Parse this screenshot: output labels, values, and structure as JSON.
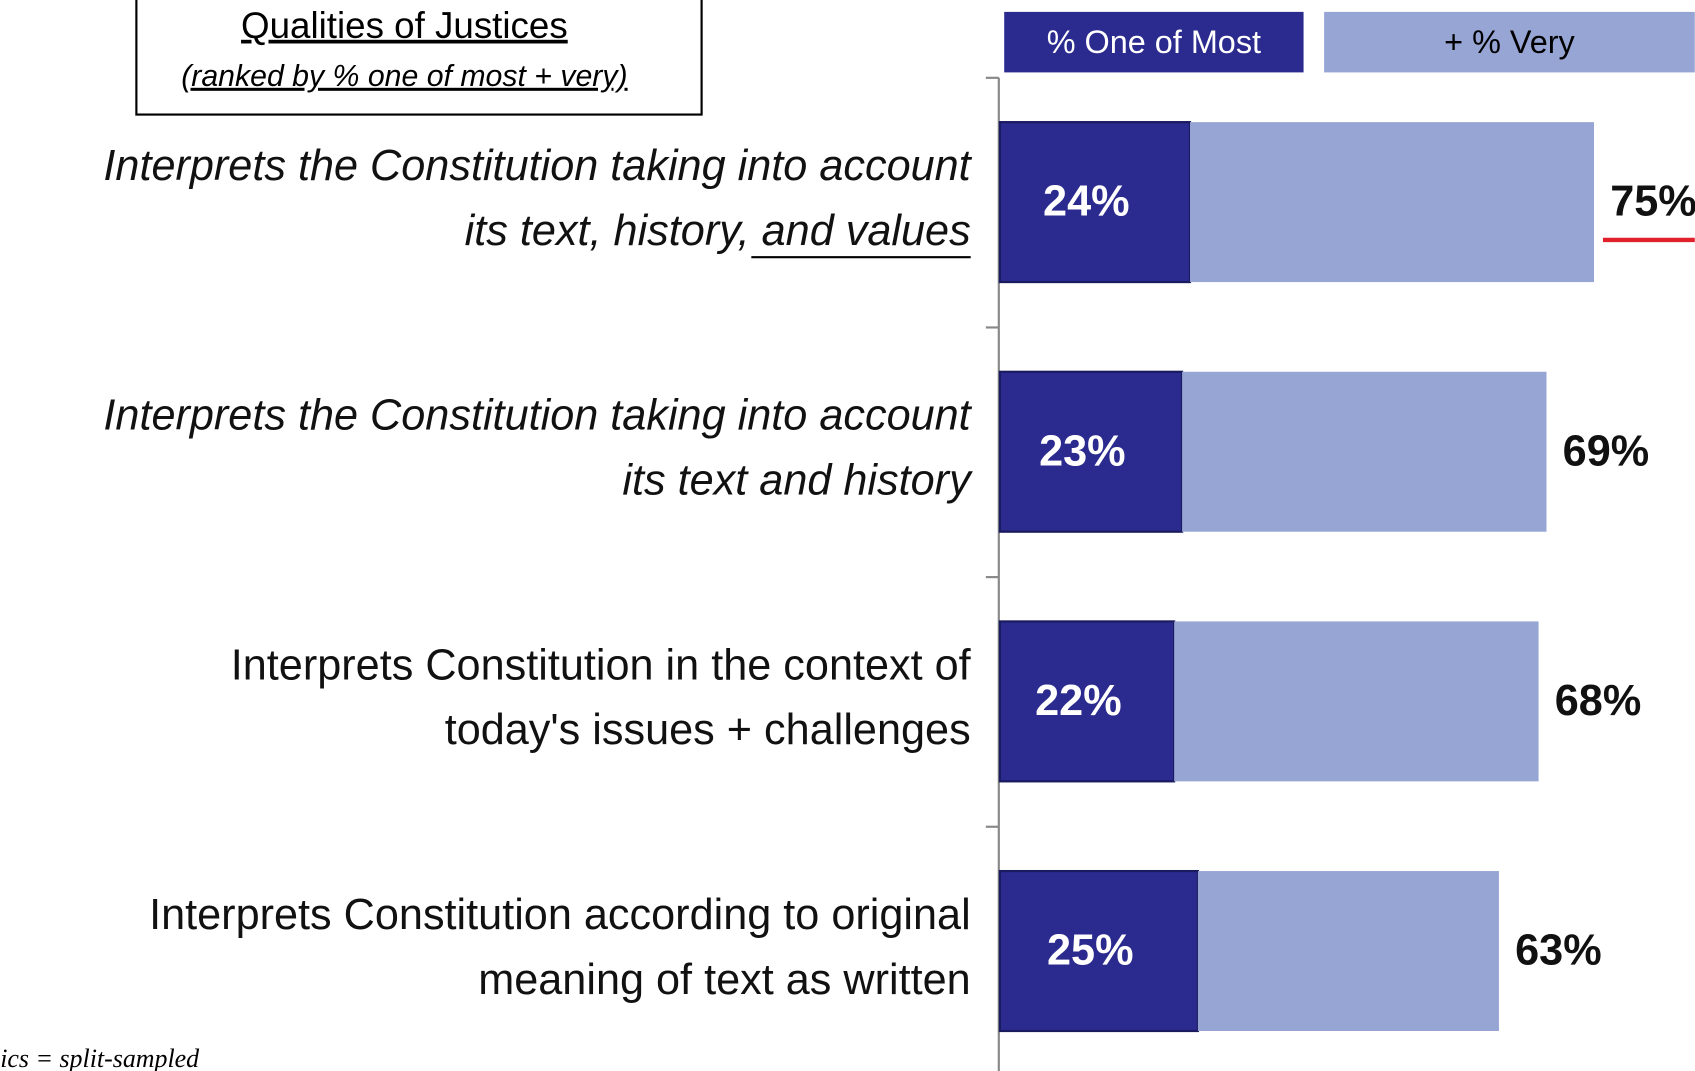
{
  "chart_data": {
    "type": "stacked-bar-horizontal",
    "title": "Qualities of Justices",
    "subtitle": "(ranked by % one of most + very)",
    "note": "ics = split-sampled",
    "categories": [
      [
        "Interprets the Constitution taking into account",
        "its text, history, and values"
      ],
      [
        "Interprets the Constitution taking into account",
        "its text and history"
      ],
      [
        "Interprets Constitution in the context of",
        "today's issues + challenges"
      ],
      [
        "Interprets Constitution according to original",
        "meaning of text as written"
      ]
    ],
    "italic": [
      true,
      true,
      false,
      false
    ],
    "series": [
      {
        "name": "% One of Most",
        "color": "#2b2a8f",
        "values": [
          24,
          23,
          22,
          25
        ],
        "value_labels": [
          "24%",
          "23%",
          "22%",
          "25%"
        ]
      },
      {
        "name": "+ % Very",
        "color": "#97a5d4",
        "values": [
          51,
          46,
          46,
          38
        ]
      }
    ],
    "totals": [
      75,
      69,
      68,
      63
    ],
    "total_labels": [
      "75%",
      "69%",
      "68%",
      "63%"
    ]
  }
}
